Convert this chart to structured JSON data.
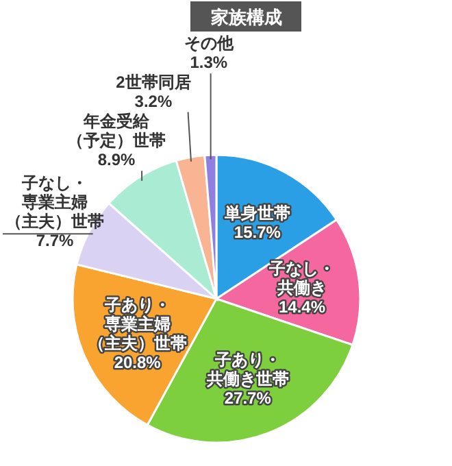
{
  "chart_data": {
    "type": "pie",
    "title": "家族構成",
    "categories": [
      "単身世帯",
      "子なし・共働き",
      "子あり・共働き世帯",
      "子あり・専業主婦（主夫）世帯",
      "子なし・専業主婦（主夫）世帯",
      "年金受給（予定）世帯",
      "2世帯同居",
      "その他"
    ],
    "values": [
      15.7,
      14.4,
      27.7,
      20.8,
      7.7,
      8.9,
      3.2,
      1.3
    ],
    "value_labels": [
      "15.7%",
      "14.4%",
      "27.7%",
      "20.8%",
      "7.7%",
      "8.9%",
      "3.2%",
      "1.3%"
    ],
    "colors": [
      "#2a9fe6",
      "#f5679f",
      "#7ecf3e",
      "#f9a431",
      "#d9d2f2",
      "#a9ecd3",
      "#f8b493",
      "#8f7fe0"
    ]
  }
}
